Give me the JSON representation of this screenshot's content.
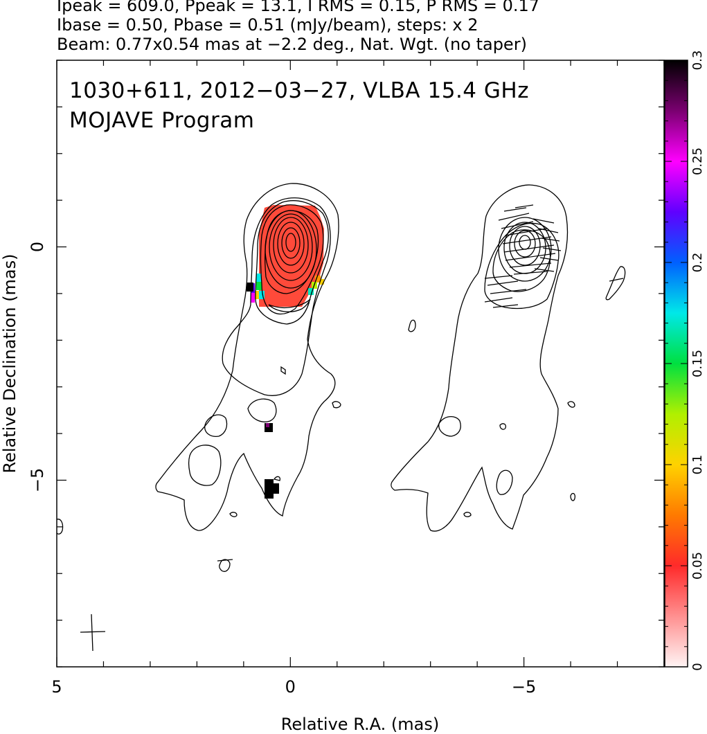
{
  "header": {
    "line1": "Ipeak = 609.0, Ppeak = 13.1, I RMS = 0.15, P RMS = 0.17",
    "line2": "Ibase = 0.50, Pbase = 0.51 (mJy/beam), steps: x 2",
    "line3": "Beam: 0.77x0.54 mas at −2.2 deg., Nat. Wgt. (no taper)"
  },
  "chart_data": {
    "type": "heatmap",
    "title": "1030+611, 2012−03−27, VLBA 15.4 GHz",
    "subtitle": "MOJAVE Program",
    "xlabel": "Relative R.A. (mas)",
    "ylabel": "Relative Declination (mas)",
    "xlim": [
      5,
      -8
    ],
    "ylim": [
      -9,
      4
    ],
    "x_ticks": [
      {
        "value": 5,
        "label": "5"
      },
      {
        "value": 0,
        "label": "0"
      },
      {
        "value": -5,
        "label": "−5"
      }
    ],
    "y_ticks": [
      {
        "value": 0,
        "label": "0"
      },
      {
        "value": -5,
        "label": "−5"
      }
    ],
    "colorbar": {
      "range": [
        0,
        0.3
      ],
      "ticks": [
        {
          "value": 0,
          "label": "0"
        },
        {
          "value": 0.05,
          "label": "0.05"
        },
        {
          "value": 0.1,
          "label": "0.1"
        },
        {
          "value": 0.15,
          "label": "0.15"
        },
        {
          "value": 0.2,
          "label": "0.2"
        },
        {
          "value": 0.25,
          "label": "0.25"
        },
        {
          "value": 0.3,
          "label": "0.3"
        }
      ],
      "colors": [
        "#fff4f4",
        "#ff9090",
        "#ff2a2a",
        "#ff7a00",
        "#ffd200",
        "#b0f000",
        "#00e040",
        "#00e8e8",
        "#0060ff",
        "#6000ff",
        "#ff00ff",
        "#7a0070",
        "#000000"
      ]
    },
    "beam": {
      "major_mas": 0.77,
      "minor_mas": 0.54,
      "pa_deg": -2.2
    },
    "left_panel": {
      "label": "Stokes I contours with fractional polarization color",
      "core_center": [
        0,
        0
      ]
    },
    "right_panel": {
      "label": "Polarized intensity contours with EVPA ticks",
      "offset_ra": -5,
      "core_center": [
        -5,
        0
      ]
    }
  }
}
